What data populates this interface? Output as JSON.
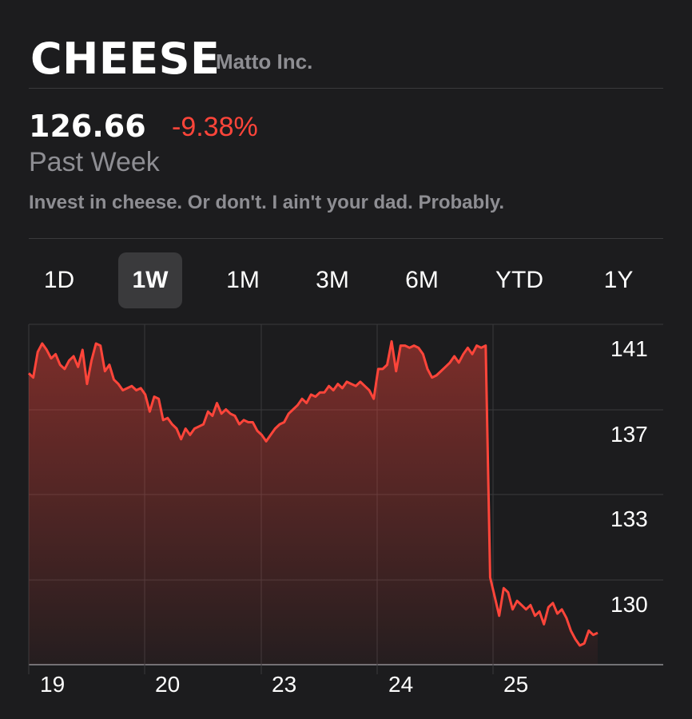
{
  "header": {
    "ticker": "CHEESE",
    "company": "Matto Inc.",
    "price": "126.66",
    "change": "-9.38%",
    "period": "Past Week",
    "tagline": "Invest in cheese. Or don't. I ain't your dad. Probably."
  },
  "ranges": [
    "1D",
    "1W",
    "1M",
    "3M",
    "6M",
    "YTD",
    "1Y"
  ],
  "selected_range": "1W",
  "colors": {
    "background": "#1c1c1e",
    "line": "#ff453a",
    "negative": "#ff453a",
    "secondary_text": "#8e8e93"
  },
  "chart_data": {
    "type": "area",
    "x_tick_labels": [
      "19",
      "20",
      "23",
      "24",
      "25"
    ],
    "y_tick_labels": [
      "141",
      "137",
      "133",
      "130"
    ],
    "ylim": [
      126.0,
      142.0
    ],
    "series": [
      {
        "values": [
          139.7,
          139.5,
          140.7,
          141.1,
          140.8,
          140.4,
          140.6,
          140.1,
          139.9,
          140.3,
          140.5,
          140.0,
          140.8,
          139.2,
          140.3,
          141.1,
          141.0,
          139.8,
          140.1,
          139.4,
          139.2,
          138.9,
          139.0,
          139.1,
          138.9,
          139.0,
          138.7,
          137.9,
          138.6,
          138.5,
          137.5,
          137.6,
          137.3,
          137.1,
          136.6,
          137.1,
          136.8,
          137.1,
          137.2,
          137.3,
          137.9,
          137.7,
          138.3,
          137.8,
          138.0,
          137.8,
          137.7,
          137.3,
          137.5,
          137.4,
          137.4,
          137.0,
          136.8,
          136.5,
          136.8,
          137.1,
          137.3,
          137.4,
          137.8,
          138.0,
          138.2,
          138.5,
          138.3,
          138.7,
          138.6,
          138.8,
          138.8,
          139.1,
          138.9,
          139.2,
          139.0,
          139.3,
          139.2,
          139.1,
          139.3,
          139.1,
          138.9,
          138.5,
          139.9,
          139.9,
          140.1,
          141.2,
          139.8,
          141.0,
          141.0,
          140.9,
          141.0,
          140.9,
          140.6,
          139.9,
          139.5,
          139.6,
          139.8,
          140.0,
          140.2,
          140.5,
          140.2,
          140.6,
          140.9,
          140.6,
          141.0,
          140.9,
          141.0,
          130.1,
          129.2,
          128.3,
          129.6,
          129.4,
          128.6,
          129.0,
          128.8,
          128.6,
          128.8,
          128.3,
          128.5,
          127.9,
          128.7,
          128.9,
          128.4,
          128.6,
          128.2,
          127.6,
          127.2,
          126.9,
          127.0,
          127.6,
          127.4,
          127.5
        ]
      }
    ]
  }
}
